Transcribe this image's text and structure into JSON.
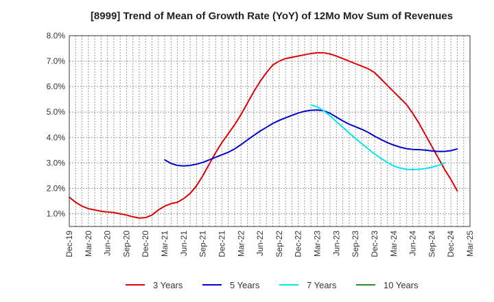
{
  "chart_data": {
    "type": "line",
    "title": "[8999]  Trend of Mean of Growth Rate (YoY) of 12Mo Mov Sum of Revenues",
    "xlabel": "",
    "ylabel": "",
    "y_tick_labels": [
      "1.0%",
      "2.0%",
      "3.0%",
      "4.0%",
      "5.0%",
      "6.0%",
      "7.0%",
      "8.0%"
    ],
    "ylim": [
      0.5,
      8.0
    ],
    "x_tick_labels": [
      "Dec-19",
      "Mar-20",
      "Jun-20",
      "Sep-20",
      "Dec-20",
      "Mar-21",
      "Jun-21",
      "Sep-21",
      "Dec-21",
      "Mar-22",
      "Jun-22",
      "Sep-22",
      "Dec-22",
      "Mar-23",
      "Jun-23",
      "Sep-23",
      "Dec-23",
      "Mar-24",
      "Jun-24",
      "Sep-24",
      "Dec-24",
      "Mar-25"
    ],
    "grid": true,
    "legend_position": "bottom",
    "series": [
      {
        "name": "3 Years",
        "color": "#dd0000",
        "points": [
          [
            0,
            1.65
          ],
          [
            1,
            1.45
          ],
          [
            2,
            1.3
          ],
          [
            3,
            1.2
          ],
          [
            4,
            1.15
          ],
          [
            5,
            1.1
          ],
          [
            6,
            1.07
          ],
          [
            7,
            1.05
          ],
          [
            8,
            1.0
          ],
          [
            9,
            0.95
          ],
          [
            10,
            0.88
          ],
          [
            11,
            0.83
          ],
          [
            12,
            0.85
          ],
          [
            13,
            0.95
          ],
          [
            14,
            1.15
          ],
          [
            15,
            1.3
          ],
          [
            16,
            1.4
          ],
          [
            17,
            1.45
          ],
          [
            18,
            1.6
          ],
          [
            19,
            1.8
          ],
          [
            20,
            2.1
          ],
          [
            21,
            2.5
          ],
          [
            22,
            2.95
          ],
          [
            23,
            3.4
          ],
          [
            24,
            3.8
          ],
          [
            25,
            4.15
          ],
          [
            26,
            4.5
          ],
          [
            27,
            4.9
          ],
          [
            28,
            5.35
          ],
          [
            29,
            5.8
          ],
          [
            30,
            6.2
          ],
          [
            31,
            6.55
          ],
          [
            32,
            6.85
          ],
          [
            33,
            7.0
          ],
          [
            34,
            7.1
          ],
          [
            35,
            7.15
          ],
          [
            36,
            7.2
          ],
          [
            37,
            7.25
          ],
          [
            38,
            7.3
          ],
          [
            39,
            7.33
          ],
          [
            40,
            7.33
          ],
          [
            41,
            7.28
          ],
          [
            42,
            7.2
          ],
          [
            43,
            7.1
          ],
          [
            44,
            7.0
          ],
          [
            45,
            6.9
          ],
          [
            46,
            6.8
          ],
          [
            47,
            6.7
          ],
          [
            48,
            6.55
          ],
          [
            49,
            6.3
          ],
          [
            50,
            6.05
          ],
          [
            51,
            5.8
          ],
          [
            52,
            5.55
          ],
          [
            53,
            5.3
          ],
          [
            54,
            4.95
          ],
          [
            55,
            4.55
          ],
          [
            56,
            4.1
          ],
          [
            57,
            3.65
          ],
          [
            58,
            3.2
          ],
          [
            59,
            2.75
          ],
          [
            60,
            2.35
          ],
          [
            61,
            1.9
          ]
        ]
      },
      {
        "name": "5 Years",
        "color": "#0000cc",
        "points": [
          [
            15,
            3.12
          ],
          [
            16,
            2.98
          ],
          [
            17,
            2.9
          ],
          [
            18,
            2.88
          ],
          [
            19,
            2.9
          ],
          [
            20,
            2.95
          ],
          [
            21,
            3.02
          ],
          [
            22,
            3.12
          ],
          [
            23,
            3.22
          ],
          [
            24,
            3.32
          ],
          [
            25,
            3.42
          ],
          [
            26,
            3.55
          ],
          [
            27,
            3.72
          ],
          [
            28,
            3.9
          ],
          [
            29,
            4.08
          ],
          [
            30,
            4.25
          ],
          [
            31,
            4.4
          ],
          [
            32,
            4.55
          ],
          [
            33,
            4.67
          ],
          [
            34,
            4.77
          ],
          [
            35,
            4.87
          ],
          [
            36,
            4.96
          ],
          [
            37,
            5.03
          ],
          [
            38,
            5.07
          ],
          [
            39,
            5.08
          ],
          [
            40,
            5.05
          ],
          [
            41,
            4.95
          ],
          [
            42,
            4.8
          ],
          [
            43,
            4.65
          ],
          [
            44,
            4.52
          ],
          [
            45,
            4.42
          ],
          [
            46,
            4.32
          ],
          [
            47,
            4.2
          ],
          [
            48,
            4.05
          ],
          [
            49,
            3.92
          ],
          [
            50,
            3.8
          ],
          [
            51,
            3.7
          ],
          [
            52,
            3.62
          ],
          [
            53,
            3.56
          ],
          [
            54,
            3.53
          ],
          [
            55,
            3.52
          ],
          [
            56,
            3.5
          ],
          [
            57,
            3.47
          ],
          [
            58,
            3.45
          ],
          [
            59,
            3.45
          ],
          [
            60,
            3.48
          ],
          [
            61,
            3.55
          ]
        ]
      },
      {
        "name": "7 Years",
        "color": "#00e5ee",
        "points": [
          [
            38,
            5.28
          ],
          [
            39,
            5.2
          ],
          [
            40,
            5.05
          ],
          [
            41,
            4.85
          ],
          [
            42,
            4.62
          ],
          [
            43,
            4.4
          ],
          [
            44,
            4.18
          ],
          [
            45,
            3.96
          ],
          [
            46,
            3.75
          ],
          [
            47,
            3.55
          ],
          [
            48,
            3.35
          ],
          [
            49,
            3.18
          ],
          [
            50,
            3.02
          ],
          [
            51,
            2.88
          ],
          [
            52,
            2.8
          ],
          [
            53,
            2.75
          ],
          [
            54,
            2.74
          ],
          [
            55,
            2.75
          ],
          [
            56,
            2.78
          ],
          [
            57,
            2.83
          ],
          [
            58,
            2.9
          ],
          [
            59,
            3.0
          ]
        ]
      },
      {
        "name": "10 Years",
        "color": "#228b22",
        "points": []
      }
    ]
  }
}
